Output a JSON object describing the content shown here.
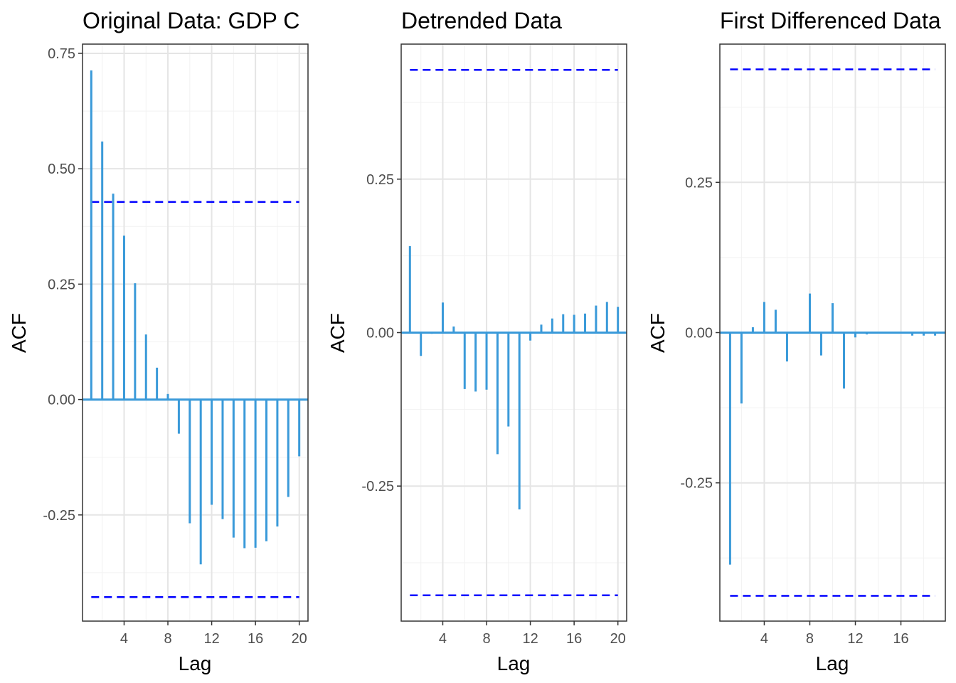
{
  "colors": {
    "bar": "#3a9ad9",
    "confidence_line": "#0000ff",
    "grid_major": "#e5e5e5",
    "grid_minor": "#f2f2f2",
    "panel_border": "#333333"
  },
  "chart_data": [
    {
      "type": "bar",
      "title": "Original Data: GDP C",
      "xlabel": "Lag",
      "ylabel": "ACF",
      "grid": true,
      "legend": "none",
      "xlim": [
        0.2,
        20.8
      ],
      "ylim": [
        -0.48,
        0.77
      ],
      "x_ticks": [
        4,
        8,
        12,
        16,
        20
      ],
      "x_tick_labels": [
        "4",
        "8",
        "12",
        "16",
        "20"
      ],
      "y_ticks": [
        -0.25,
        0.0,
        0.25,
        0.5,
        0.75
      ],
      "y_tick_labels": [
        "-0.25",
        "0.00",
        "0.25",
        "0.50",
        "0.75"
      ],
      "confidence_band": [
        -0.428,
        0.428
      ],
      "lags": [
        1,
        2,
        3,
        4,
        5,
        6,
        7,
        8,
        9,
        10,
        11,
        12,
        13,
        14,
        15,
        16,
        17,
        18,
        19,
        20
      ],
      "values": [
        0.713,
        0.559,
        0.446,
        0.355,
        0.252,
        0.141,
        0.069,
        0.012,
        -0.074,
        -0.268,
        -0.357,
        -0.228,
        -0.259,
        -0.299,
        -0.322,
        -0.321,
        -0.307,
        -0.275,
        -0.211,
        -0.123
      ]
    },
    {
      "type": "bar",
      "title": "Detrended Data",
      "xlabel": "Lag",
      "ylabel": "ACF",
      "grid": true,
      "legend": "none",
      "xlim": [
        0.2,
        20.8
      ],
      "ylim": [
        -0.47,
        0.47
      ],
      "x_ticks": [
        4,
        8,
        12,
        16,
        20
      ],
      "x_tick_labels": [
        "4",
        "8",
        "12",
        "16",
        "20"
      ],
      "y_ticks": [
        -0.25,
        0.0,
        0.25
      ],
      "y_tick_labels": [
        "-0.25",
        "0.00",
        "0.25"
      ],
      "confidence_band": [
        -0.428,
        0.428
      ],
      "lags": [
        1,
        2,
        3,
        4,
        5,
        6,
        7,
        8,
        9,
        10,
        11,
        12,
        13,
        14,
        15,
        16,
        17,
        18,
        19,
        20
      ],
      "values": [
        0.141,
        -0.038,
        -0.002,
        0.049,
        0.01,
        -0.092,
        -0.096,
        -0.093,
        -0.198,
        -0.153,
        -0.288,
        -0.013,
        0.013,
        0.023,
        0.03,
        0.029,
        0.031,
        0.044,
        0.05,
        0.042
      ]
    },
    {
      "type": "bar",
      "title": "First Differenced Data",
      "xlabel": "Lag",
      "ylabel": "ACF",
      "grid": true,
      "legend": "none",
      "xlim": [
        0.1,
        19.9
      ],
      "ylim": [
        -0.48,
        0.48
      ],
      "x_ticks": [
        4,
        8,
        12,
        16
      ],
      "x_tick_labels": [
        "4",
        "8",
        "12",
        "16"
      ],
      "y_ticks": [
        -0.25,
        0.0,
        0.25
      ],
      "y_tick_labels": [
        "-0.25",
        "0.00",
        "0.25"
      ],
      "confidence_band": [
        -0.438,
        0.438
      ],
      "lags": [
        1,
        2,
        3,
        4,
        5,
        6,
        7,
        8,
        9,
        10,
        11,
        12,
        13,
        14,
        15,
        16,
        17,
        18,
        19
      ],
      "values": [
        -0.386,
        -0.118,
        0.009,
        0.051,
        0.038,
        -0.048,
        0.0,
        0.065,
        -0.038,
        0.049,
        -0.093,
        -0.008,
        -0.003,
        0.0,
        0.0,
        0.0,
        -0.005,
        -0.005,
        -0.005
      ]
    }
  ]
}
